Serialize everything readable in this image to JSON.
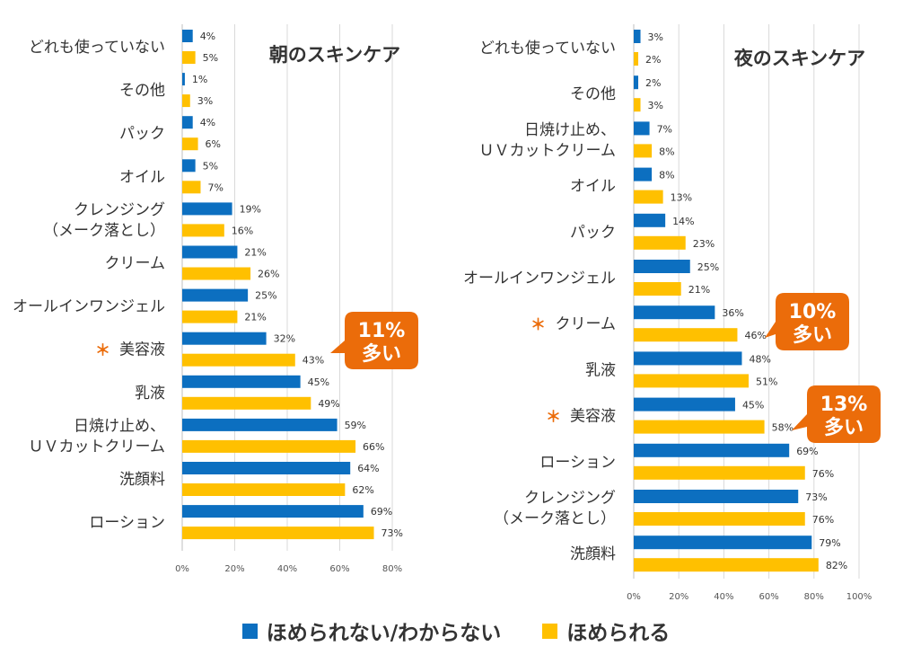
{
  "colors": {
    "blue": "#0C6FC0",
    "yellow": "#FFC000",
    "callout": "#EB6C0A",
    "grid": "#D9D9D9",
    "star": "#EB6C0A",
    "text": "#333333"
  },
  "legend": {
    "items": [
      {
        "label": "ほめられない/わからない",
        "color": "#0C6FC0"
      },
      {
        "label": "ほめられる",
        "color": "#FFC000"
      }
    ]
  },
  "chart_data": [
    {
      "type": "bar",
      "orientation": "horizontal",
      "title": "朝のスキンケア",
      "categories": [
        "どれも使っていない",
        "その他",
        "パック",
        "オイル",
        "クレンジング\n（メーク落とし）",
        "クリーム",
        "オールインワンジェル",
        "美容液",
        "乳液",
        "日焼け止め、\nＵＶカットクリーム",
        "洗顔料",
        "ローション"
      ],
      "starred": [
        false,
        false,
        false,
        false,
        false,
        false,
        false,
        true,
        false,
        false,
        false,
        false
      ],
      "series": [
        {
          "name": "ほめられない/わからない",
          "values": [
            4,
            1,
            4,
            5,
            19,
            21,
            25,
            32,
            45,
            59,
            64,
            69
          ]
        },
        {
          "name": "ほめられる",
          "values": [
            5,
            3,
            6,
            7,
            16,
            26,
            21,
            43,
            49,
            66,
            62,
            73
          ]
        }
      ],
      "xlim": [
        0,
        80
      ],
      "xticks": [
        0,
        20,
        40,
        60,
        80
      ],
      "tick_labels": [
        "0%",
        "20%",
        "40%",
        "60%",
        "80%"
      ],
      "value_suffix": "%",
      "grid": true,
      "callouts": [
        {
          "category": "美容液",
          "line1": "11%",
          "line2": "多い"
        }
      ]
    },
    {
      "type": "bar",
      "orientation": "horizontal",
      "title": "夜のスキンケア",
      "categories": [
        "どれも使っていない",
        "その他",
        "日焼け止め、\nＵＶカットクリーム",
        "オイル",
        "パック",
        "オールインワンジェル",
        "クリーム",
        "乳液",
        "美容液",
        "ローション",
        "クレンジング\n（メーク落とし）",
        "洗顔料"
      ],
      "starred": [
        false,
        false,
        false,
        false,
        false,
        false,
        true,
        false,
        true,
        false,
        false,
        false
      ],
      "series": [
        {
          "name": "ほめられない/わからない",
          "values": [
            3,
            2,
            7,
            8,
            14,
            25,
            36,
            48,
            45,
            69,
            73,
            79
          ]
        },
        {
          "name": "ほめられる",
          "values": [
            2,
            3,
            8,
            13,
            23,
            21,
            46,
            51,
            58,
            76,
            76,
            82
          ]
        }
      ],
      "xlim": [
        0,
        100
      ],
      "xticks": [
        0,
        20,
        40,
        60,
        80,
        100
      ],
      "tick_labels": [
        "0%",
        "20%",
        "40%",
        "60%",
        "80%",
        "100%"
      ],
      "value_suffix": "%",
      "grid": true,
      "callouts": [
        {
          "category": "クリーム",
          "line1": "10%",
          "line2": "多い"
        },
        {
          "category": "美容液",
          "line1": "13%",
          "line2": "多い"
        }
      ]
    }
  ]
}
